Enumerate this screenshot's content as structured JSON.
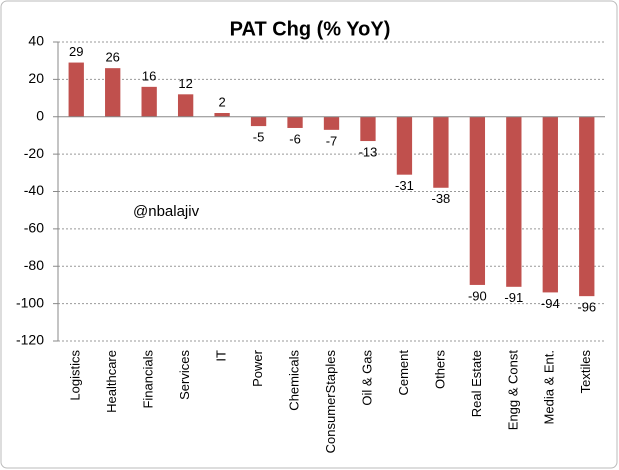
{
  "chart_data": {
    "type": "bar",
    "title": "PAT Chg (% YoY)",
    "categories": [
      "Logistics",
      "Healthcare",
      "Financials",
      "Services",
      "IT",
      "Power",
      "Chemicals",
      "ConsumerStaples",
      "Oil & Gas",
      "Cement",
      "Others",
      "Real Estate",
      "Engg & Const",
      "Media & Ent.",
      "Textiles"
    ],
    "values": [
      29,
      26,
      16,
      12,
      2,
      -5,
      -6,
      -7,
      -13,
      -31,
      -38,
      -90,
      -91,
      -94,
      -96
    ],
    "color": "#c0504d",
    "ylim": [
      -120,
      40
    ],
    "yticks": [
      -120,
      -100,
      -80,
      -60,
      -40,
      -20,
      0,
      20,
      40
    ],
    "grid": true,
    "annotation": "@nbalajiv"
  }
}
